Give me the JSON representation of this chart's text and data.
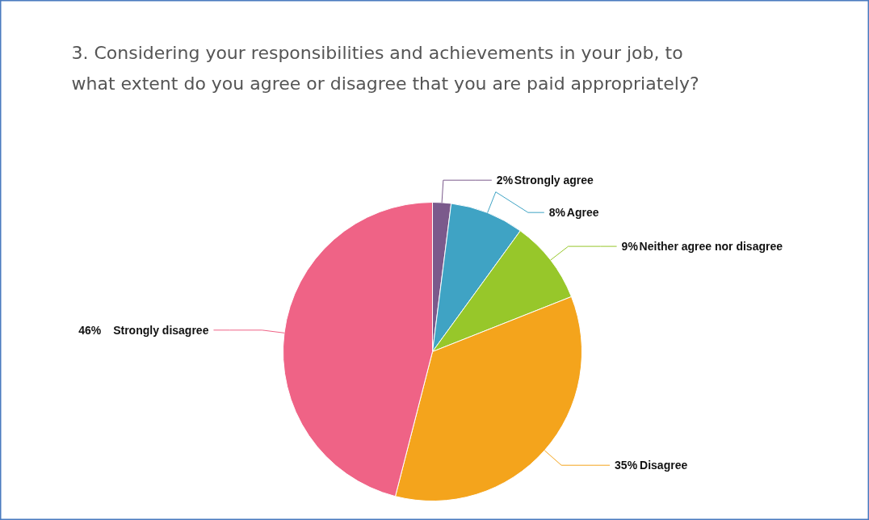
{
  "chart_data": {
    "type": "pie",
    "title": "3. Considering your responsibilities and achievements in your job, to what extent do you agree or disagree that you are paid appropriately?",
    "categories": [
      "Strongly agree",
      "Agree",
      "Neither agree nor disagree",
      "Disagree",
      "Strongly disagree"
    ],
    "values": [
      2,
      8,
      9,
      35,
      46
    ],
    "colors": [
      "#7b5a8c",
      "#3fa3c4",
      "#97c72a",
      "#f4a41c",
      "#ef6386"
    ],
    "value_labels": [
      "2%",
      "8%",
      "9%",
      "35%",
      "46%"
    ]
  }
}
